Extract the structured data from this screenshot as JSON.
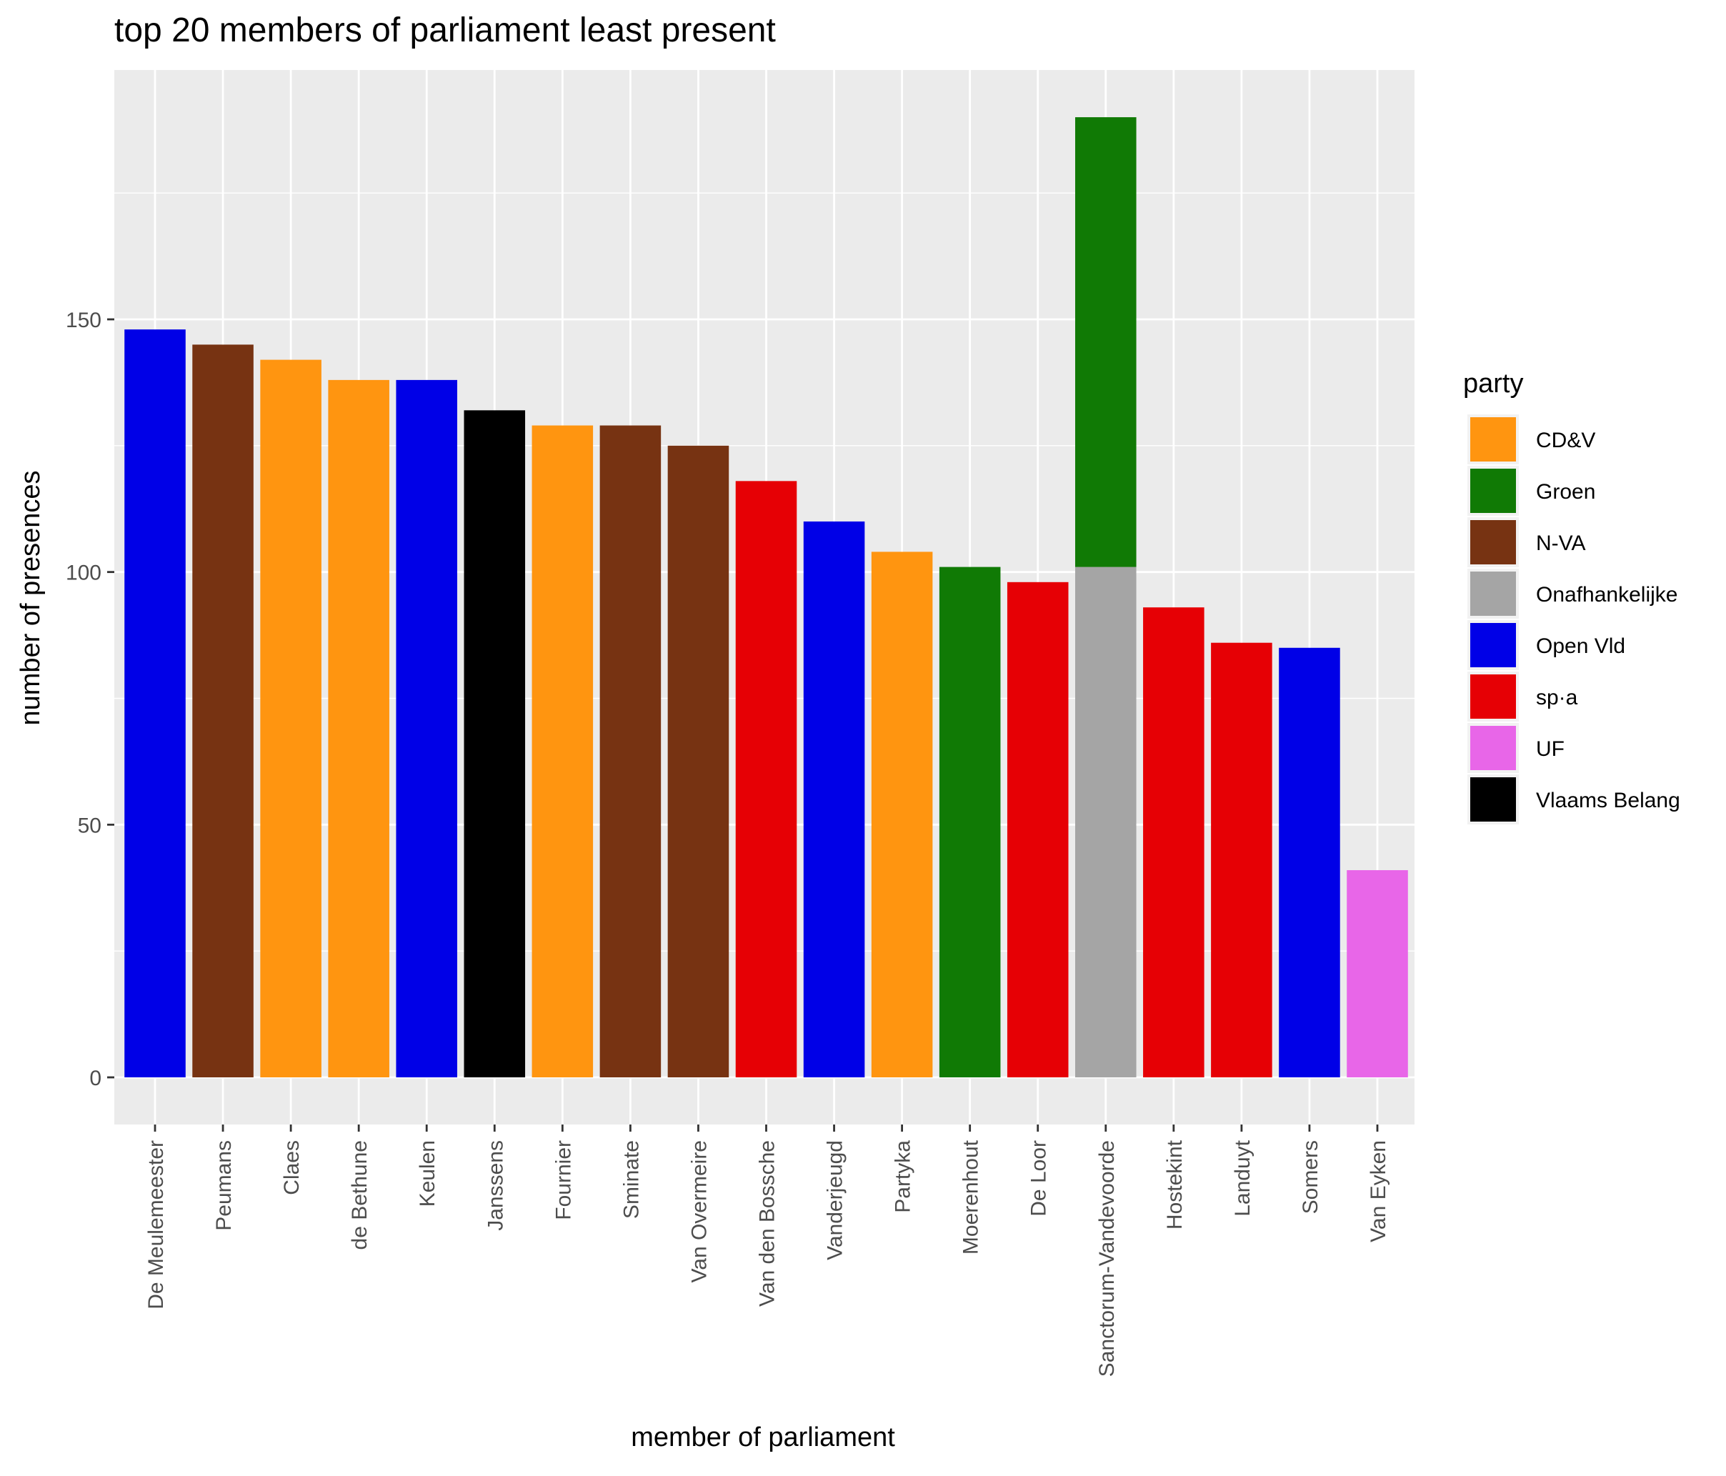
{
  "chart_data": {
    "type": "bar",
    "stacked": true,
    "title": "top 20 members of parliament least present",
    "xlabel": "member of parliament",
    "ylabel": "number of presences",
    "ylim": [
      -19,
      211
    ],
    "yticks": [
      0,
      50,
      100,
      150
    ],
    "grid": true,
    "legend": {
      "title": "party",
      "position": "right",
      "entries": [
        {
          "name": "CD&V",
          "color": "#FF9510"
        },
        {
          "name": "Groen",
          "color": "#107A05"
        },
        {
          "name": "N-VA",
          "color": "#773312"
        },
        {
          "name": "Onafhankelijke",
          "color": "#A5A5A5"
        },
        {
          "name": "Open Vld",
          "color": "#0000E7"
        },
        {
          "name": "sp·a",
          "color": "#E60005"
        },
        {
          "name": "UF",
          "color": "#E866E8"
        },
        {
          "name": "Vlaams Belang",
          "color": "#000000"
        }
      ]
    },
    "categories": [
      "De Meulemeester",
      "Peumans",
      "Claes",
      "de Bethune",
      "Keulen",
      "Janssens",
      "Fournier",
      "Sminate",
      "Van Overmeire",
      "Van den Bossche",
      "Vanderjeugd",
      "Partyka",
      "Moerenhout",
      "De Loor",
      "Sanctorum-Vandevoorde",
      "Hostekint",
      "Landuyt",
      "Somers",
      "Van Eyken"
    ],
    "bars": [
      {
        "member": "De Meulemeester",
        "segments": [
          {
            "party": "Open Vld",
            "value": 148
          }
        ]
      },
      {
        "member": "Peumans",
        "segments": [
          {
            "party": "N-VA",
            "value": 145
          }
        ]
      },
      {
        "member": "Claes",
        "segments": [
          {
            "party": "CD&V",
            "value": 142
          }
        ]
      },
      {
        "member": "de Bethune",
        "segments": [
          {
            "party": "CD&V",
            "value": 138
          }
        ]
      },
      {
        "member": "Keulen",
        "segments": [
          {
            "party": "Open Vld",
            "value": 138
          }
        ]
      },
      {
        "member": "Janssens",
        "segments": [
          {
            "party": "Vlaams Belang",
            "value": 132
          }
        ]
      },
      {
        "member": "Fournier",
        "segments": [
          {
            "party": "CD&V",
            "value": 129
          }
        ]
      },
      {
        "member": "Sminate",
        "segments": [
          {
            "party": "N-VA",
            "value": 129
          }
        ]
      },
      {
        "member": "Van Overmeire",
        "segments": [
          {
            "party": "N-VA",
            "value": 125
          }
        ]
      },
      {
        "member": "Van den Bossche",
        "segments": [
          {
            "party": "sp·a",
            "value": 118
          }
        ]
      },
      {
        "member": "Vanderjeugd",
        "segments": [
          {
            "party": "Open Vld",
            "value": 110
          }
        ]
      },
      {
        "member": "Partyka",
        "segments": [
          {
            "party": "CD&V",
            "value": 104
          }
        ]
      },
      {
        "member": "Moerenhout",
        "segments": [
          {
            "party": "Groen",
            "value": 101
          }
        ]
      },
      {
        "member": "De Loor",
        "segments": [
          {
            "party": "sp·a",
            "value": 98
          }
        ]
      },
      {
        "member": "Sanctorum-Vandevoorde",
        "segments": [
          {
            "party": "Onafhankelijke",
            "value": 101
          },
          {
            "party": "Groen",
            "value": 89
          }
        ]
      },
      {
        "member": "Hostekint",
        "segments": [
          {
            "party": "sp·a",
            "value": 93
          }
        ]
      },
      {
        "member": "Landuyt",
        "segments": [
          {
            "party": "sp·a",
            "value": 86
          }
        ]
      },
      {
        "member": "Somers",
        "segments": [
          {
            "party": "Open Vld",
            "value": 85
          }
        ]
      },
      {
        "member": "Van Eyken",
        "segments": [
          {
            "party": "UF",
            "value": 41
          }
        ]
      }
    ]
  }
}
